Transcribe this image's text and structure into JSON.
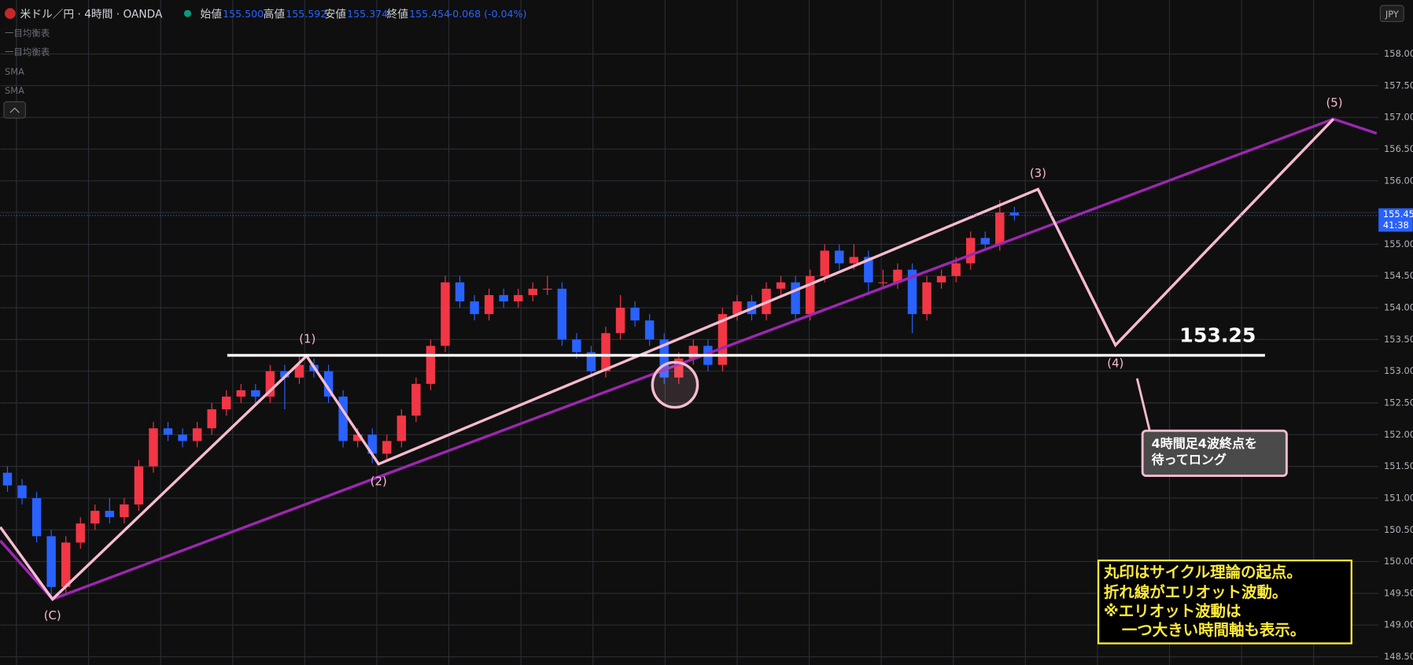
{
  "header": {
    "symbol": "米ドル／円 · 4時間 · OANDA",
    "ohlc": [
      {
        "label": "始値",
        "value": "155.500"
      },
      {
        "label": "高値",
        "value": "155.592"
      },
      {
        "label": "安値",
        "value": "155.374"
      },
      {
        "label": "終値",
        "value": "155.454"
      }
    ],
    "change": "-0.068 (-0.04%)",
    "indicators": [
      "一目均衡表",
      "一目均衡表",
      "SMA",
      "SMA"
    ],
    "currency": "JPY",
    "price_tag": "155.45",
    "countdown": "41:38"
  },
  "chart_data": {
    "type": "candlestick",
    "up_color": "#f23645",
    "down_color": "#2962ff",
    "grid": true,
    "open": [
      151.4,
      151.2,
      151.0,
      150.4,
      149.6,
      150.3,
      150.6,
      150.8,
      150.7,
      150.9,
      151.5,
      152.1,
      152.0,
      151.9,
      152.1,
      152.4,
      152.6,
      152.7,
      152.6,
      153.0,
      152.9,
      153.1,
      153.0,
      152.6,
      151.9,
      152.0,
      151.7,
      151.9,
      152.3,
      152.8,
      153.4,
      154.4,
      154.1,
      153.9,
      154.2,
      154.1,
      154.2,
      154.3,
      154.3,
      153.5,
      153.3,
      153.0,
      153.6,
      154.0,
      153.8,
      153.5,
      152.9,
      153.2,
      153.4,
      153.1,
      153.9,
      154.1,
      153.9,
      154.3,
      154.4,
      153.9,
      154.5,
      154.9,
      154.7,
      154.8,
      154.4,
      154.4,
      154.6,
      153.9,
      154.4,
      154.5,
      154.7,
      155.1,
      155.0,
      155.5
    ],
    "high": [
      151.5,
      151.3,
      151.1,
      150.5,
      150.4,
      150.7,
      150.9,
      151.0,
      151.0,
      151.6,
      152.2,
      152.2,
      152.1,
      152.2,
      152.5,
      152.7,
      152.8,
      152.8,
      153.1,
      153.1,
      153.25,
      153.2,
      153.1,
      152.7,
      152.1,
      152.1,
      152.0,
      152.4,
      152.9,
      153.5,
      154.5,
      154.5,
      154.2,
      154.3,
      154.3,
      154.3,
      154.4,
      154.5,
      154.4,
      153.6,
      153.4,
      153.7,
      154.2,
      154.1,
      153.9,
      153.6,
      153.3,
      153.5,
      153.5,
      154.0,
      154.2,
      154.2,
      154.4,
      154.5,
      154.5,
      154.6,
      155.0,
      155.0,
      155.0,
      154.9,
      154.6,
      154.7,
      154.7,
      154.5,
      154.6,
      154.8,
      155.2,
      155.2,
      155.7,
      155.592
    ],
    "low": [
      151.1,
      150.9,
      150.3,
      149.45,
      149.5,
      150.2,
      150.5,
      150.6,
      150.6,
      150.8,
      151.4,
      151.9,
      151.8,
      151.8,
      152.0,
      152.3,
      152.5,
      152.5,
      152.5,
      152.4,
      152.8,
      152.9,
      152.5,
      151.8,
      151.8,
      151.55,
      151.6,
      151.8,
      152.2,
      152.7,
      153.3,
      154.0,
      153.8,
      153.8,
      154.0,
      154.0,
      154.1,
      154.2,
      153.4,
      153.2,
      152.9,
      152.9,
      153.5,
      153.7,
      153.4,
      152.8,
      152.8,
      153.1,
      153.0,
      153.0,
      153.8,
      153.8,
      153.8,
      154.2,
      153.8,
      153.8,
      154.4,
      154.6,
      154.6,
      154.2,
      154.3,
      154.3,
      153.6,
      153.8,
      154.3,
      154.4,
      154.6,
      154.9,
      154.9,
      155.374
    ],
    "close": [
      151.2,
      151.0,
      150.4,
      149.6,
      150.3,
      150.6,
      150.8,
      150.7,
      150.9,
      151.5,
      152.1,
      152.0,
      151.9,
      152.1,
      152.4,
      152.6,
      152.7,
      152.6,
      153.0,
      152.9,
      153.1,
      153.0,
      152.6,
      151.9,
      152.0,
      151.7,
      151.9,
      152.3,
      152.8,
      153.4,
      154.4,
      154.1,
      153.9,
      154.2,
      154.1,
      154.2,
      154.3,
      154.3,
      153.5,
      153.3,
      153.0,
      153.6,
      154.0,
      153.8,
      153.5,
      152.9,
      153.2,
      153.4,
      153.1,
      153.9,
      154.1,
      153.9,
      154.3,
      154.4,
      153.9,
      154.5,
      154.9,
      154.7,
      154.8,
      154.4,
      154.4,
      154.6,
      153.9,
      154.4,
      154.5,
      154.7,
      155.1,
      155.0,
      155.5,
      155.454
    ],
    "ylim": [
      148.37,
      158.85
    ],
    "yticks": [
      {
        "value": 148.5,
        "label": "148.50"
      },
      {
        "value": 149,
        "label": "149.00"
      },
      {
        "value": 149.5,
        "label": "149.50"
      },
      {
        "value": 150,
        "label": "150.00"
      },
      {
        "value": 150.5,
        "label": "150.50"
      },
      {
        "value": 151,
        "label": "151.00"
      },
      {
        "value": 151.5,
        "label": "151.50"
      },
      {
        "value": 152,
        "label": "152.00"
      },
      {
        "value": 152.5,
        "label": "152.50"
      },
      {
        "value": 153,
        "label": "153.00"
      },
      {
        "value": 153.5,
        "label": "153.50"
      },
      {
        "value": 154,
        "label": "154.00"
      },
      {
        "value": 154.5,
        "label": "154.50"
      },
      {
        "value": 155,
        "label": "155.00"
      },
      {
        "value": 155.5,
        "label": "155.50"
      },
      {
        "value": 156,
        "label": "156.00"
      },
      {
        "value": 156.5,
        "label": "156.50"
      },
      {
        "value": 157,
        "label": "157.00"
      },
      {
        "value": 157.5,
        "label": "157.50"
      },
      {
        "value": 158,
        "label": "158.00"
      }
    ],
    "level": 153.25,
    "wave_labels": [
      "(C)",
      "(1)",
      "(2)",
      "(3)",
      "(4)",
      "(5)"
    ],
    "callout": [
      "4時間足4波終点を",
      "待ってロング"
    ],
    "note": [
      "丸印はサイクル理論の起点。",
      "折れ線がエリオット波動。",
      "※エリオット波動は",
      "一つ大きい時間軸も表示。"
    ]
  }
}
